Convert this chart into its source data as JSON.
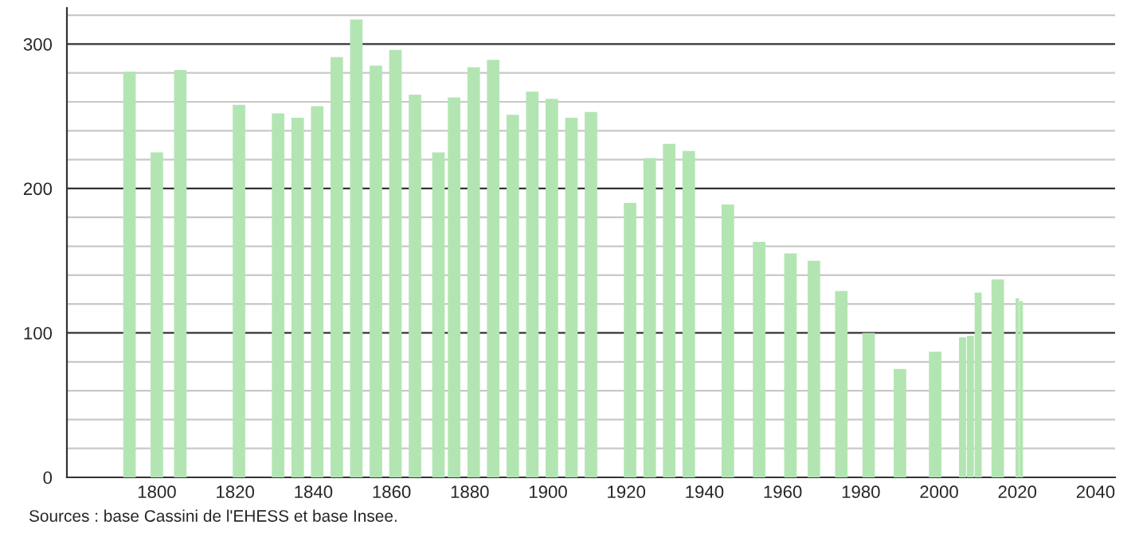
{
  "chart_data": {
    "type": "bar",
    "x": [
      1793,
      1800,
      1806,
      1821,
      1831,
      1836,
      1841,
      1846,
      1851,
      1856,
      1861,
      1866,
      1872,
      1876,
      1881,
      1886,
      1891,
      1896,
      1901,
      1906,
      1911,
      1921,
      1926,
      1931,
      1936,
      1946,
      1954,
      1962,
      1968,
      1975,
      1982,
      1990,
      1999,
      2006,
      2008,
      2010,
      2015,
      2020,
      2021
    ],
    "values": [
      281,
      225,
      282,
      258,
      252,
      249,
      257,
      291,
      317,
      285,
      296,
      265,
      225,
      263,
      284,
      289,
      251,
      267,
      262,
      249,
      253,
      190,
      221,
      231,
      226,
      189,
      163,
      155,
      150,
      129,
      100,
      75,
      87,
      97,
      98,
      128,
      137,
      124,
      122
    ],
    "color": "#b3e5b3",
    "xlim": [
      1777,
      2045
    ],
    "xticks": [
      1800,
      1820,
      1840,
      1860,
      1880,
      1900,
      1920,
      1940,
      1960,
      1980,
      2000,
      2020,
      2040
    ],
    "ylim": [
      0,
      325
    ],
    "yticks": [
      0,
      {
        "value": 20,
        "label": null
      },
      {
        "value": 40,
        "label": null
      },
      {
        "value": 60,
        "label": null
      },
      {
        "value": 80,
        "label": null
      },
      100,
      {
        "value": 120,
        "label": null
      },
      {
        "value": 140,
        "label": null
      },
      {
        "value": 160,
        "label": null
      },
      {
        "value": 180,
        "label": null
      },
      200,
      {
        "value": 220,
        "label": null
      },
      {
        "value": 240,
        "label": null
      },
      {
        "value": 260,
        "label": null
      },
      {
        "value": 280,
        "label": null
      },
      300,
      {
        "value": 320,
        "label": null
      }
    ],
    "grid": "y",
    "annotations": [
      "Sources : base Cassini de l'EHESS et base Insee."
    ]
  }
}
